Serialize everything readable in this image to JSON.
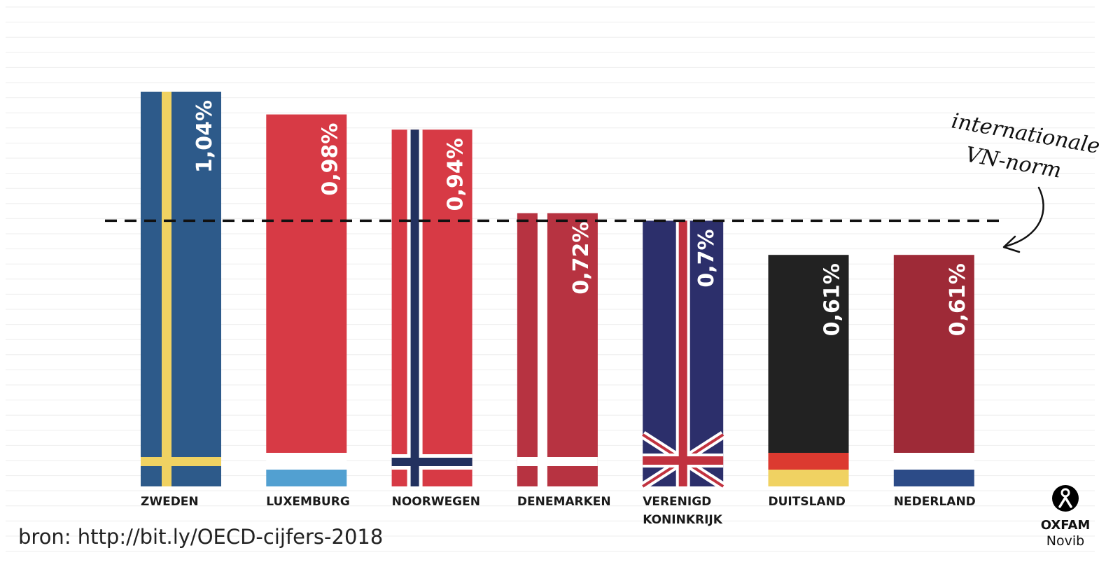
{
  "chart_data": {
    "type": "bar",
    "categories": [
      "ZWEDEN",
      "LUXEMBURG",
      "NOORWEGEN",
      "DENEMARKEN",
      "VERENIGD KONINKRIJK",
      "DUITSLAND",
      "NEDERLAND"
    ],
    "category_lines": [
      [
        "ZWEDEN"
      ],
      [
        "LUXEMBURG"
      ],
      [
        "NOORWEGEN"
      ],
      [
        "DENEMARKEN"
      ],
      [
        "VERENIGD",
        "KONINKRIJK"
      ],
      [
        "DUITSLAND"
      ],
      [
        "NEDERLAND"
      ]
    ],
    "values": [
      1.04,
      0.98,
      0.94,
      0.72,
      0.7,
      0.61,
      0.61
    ],
    "value_labels": [
      "1,04%",
      "0,98%",
      "0,94%",
      "0,72%",
      "0,7%",
      "0,61%",
      "0,61%"
    ],
    "flags": [
      "sweden",
      "luxembourg",
      "norway",
      "denmark",
      "united-kingdom",
      "germany",
      "netherlands"
    ],
    "reference_line": {
      "value": 0.7,
      "style": "dashed",
      "annotation_lines": [
        "internationale",
        "VN-norm"
      ]
    },
    "ylim": [
      0,
      1.04
    ],
    "grid": true,
    "legend": "none",
    "title": "",
    "xlabel": "",
    "ylabel": ""
  },
  "source_text": "bron: http://bit.ly/OECD-cijfers-2018",
  "logo": {
    "name": "OXFAM",
    "sub": "Novib"
  },
  "colors": {
    "sweden_blue": "#2d5a8a",
    "sweden_yellow": "#f0d262",
    "lux_red": "#d73a45",
    "lux_white": "#ffffff",
    "lux_blue": "#52a0d1",
    "nor_red": "#d73a45",
    "nor_blue": "#22315f",
    "den_red": "#b73341",
    "uk_blue": "#2c2f6b",
    "uk_red": "#c1323f",
    "ger_black": "#222222",
    "ger_red": "#dc3a30",
    "ger_gold": "#f0d262",
    "ned_red": "#9e2a37",
    "ned_blue": "#2c4b87",
    "grid": "#eeeeee"
  }
}
